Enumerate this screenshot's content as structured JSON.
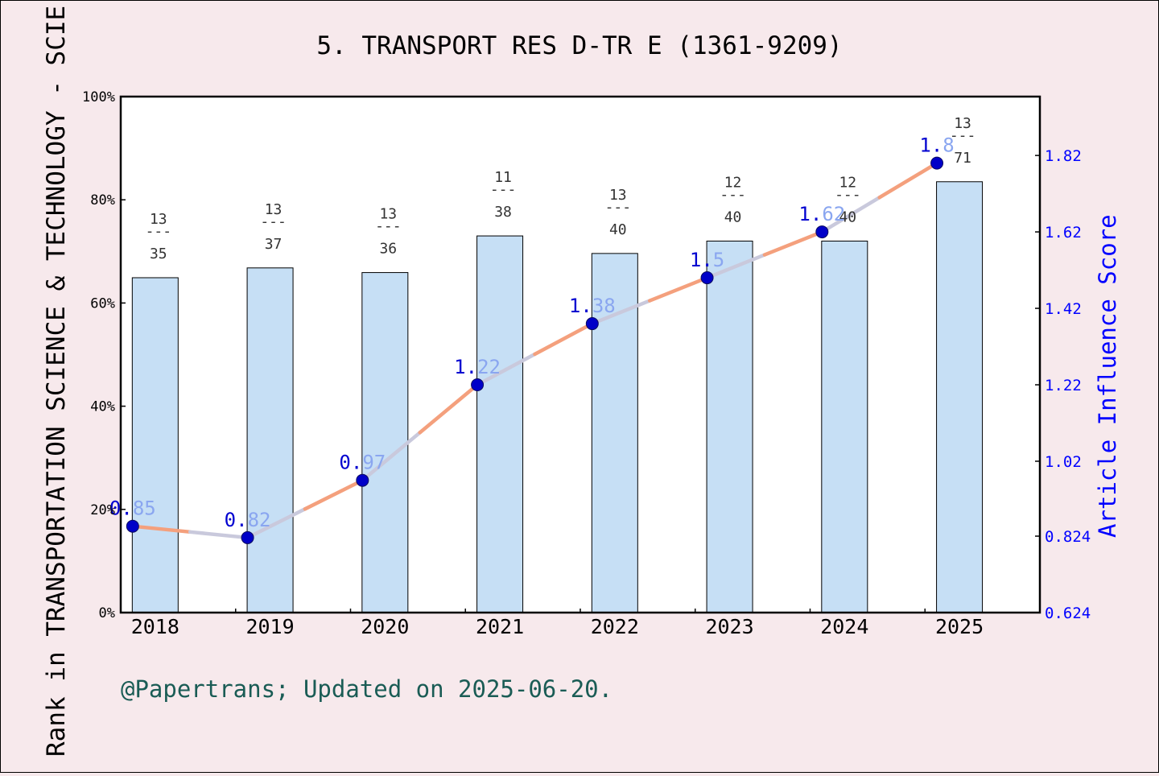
{
  "title": "5. TRANSPORT RES D-TR E (1361-9209)",
  "footer": "@Papertrans; Updated on 2025-06-20.",
  "colors": {
    "background": "#f7e9ec",
    "bar_fill": "#c6dff5",
    "line_rising": "#f4a07d",
    "line_falling": "#c9c9dc",
    "point": "#0000c8",
    "right_axis": "#0000ff",
    "footer": "#1a5c55"
  },
  "chart_data": {
    "type": "bar",
    "title": "5. TRANSPORT RES D-TR E (1361-9209)",
    "categories": [
      "2018",
      "2019",
      "2020",
      "2021",
      "2022",
      "2023",
      "2024",
      "2025"
    ],
    "ylabel": "Rank in TRANSPORTATION SCIENCE & TECHNOLOGY - SCIE",
    "y2label": "Article Influence Score",
    "ylim": [
      0,
      100
    ],
    "y2lim": [
      0.624,
      1.974
    ],
    "yticks": [
      "0%",
      "20%",
      "40%",
      "60%",
      "80%",
      "100%"
    ],
    "y2ticks": [
      "0.624",
      "0.824",
      "1.02",
      "1.22",
      "1.42",
      "1.62",
      "1.82"
    ],
    "grid": false,
    "series": [
      {
        "kind": "bar",
        "values": [
          64.9,
          66.8,
          65.9,
          73.0,
          69.6,
          72.0,
          72.0,
          83.5
        ],
        "labels": [
          {
            "top": "13",
            "bottom": "35"
          },
          {
            "top": "13",
            "bottom": "37"
          },
          {
            "top": "13",
            "bottom": "36"
          },
          {
            "top": "11",
            "bottom": "38"
          },
          {
            "top": "13",
            "bottom": "40"
          },
          {
            "top": "12",
            "bottom": "40"
          },
          {
            "top": "12",
            "bottom": "40"
          },
          {
            "top": "13",
            "bottom": "71"
          }
        ]
      },
      {
        "kind": "line",
        "axis": "right",
        "values": [
          0.85,
          0.82,
          0.97,
          1.22,
          1.38,
          1.5,
          1.62,
          1.8
        ],
        "labels": [
          "0.85",
          "0.82",
          "0.97",
          "1.22",
          "1.38",
          "1.5",
          "1.62",
          "1.8"
        ]
      }
    ]
  }
}
